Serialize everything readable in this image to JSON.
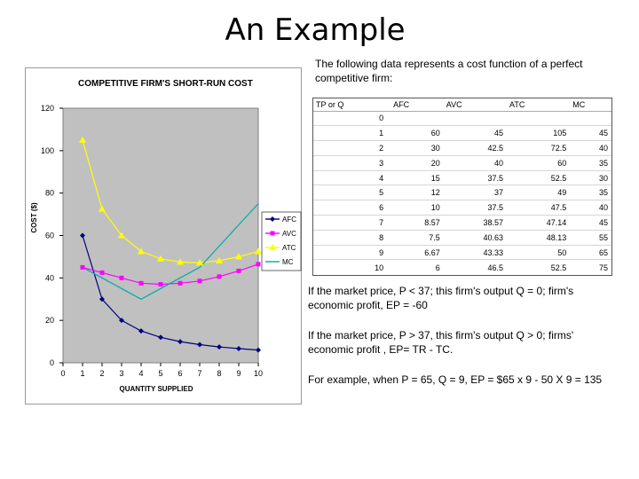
{
  "title": "An Example",
  "intro": "The following data represents a cost function of a perfect competitive firm:",
  "table": {
    "headers": [
      "TP or Q",
      "AFC",
      "AVC",
      "ATC",
      "MC"
    ],
    "rows": [
      [
        "0",
        "",
        "",
        "",
        ""
      ],
      [
        "1",
        "60",
        "45",
        "105",
        "45"
      ],
      [
        "2",
        "30",
        "42.5",
        "72.5",
        "40"
      ],
      [
        "3",
        "20",
        "40",
        "60",
        "35"
      ],
      [
        "4",
        "15",
        "37.5",
        "52.5",
        "30"
      ],
      [
        "5",
        "12",
        "37",
        "49",
        "35"
      ],
      [
        "6",
        "10",
        "37.5",
        "47.5",
        "40"
      ],
      [
        "7",
        "8.57",
        "38.57",
        "47.14",
        "45"
      ],
      [
        "8",
        "7.5",
        "40.63",
        "48.13",
        "55"
      ],
      [
        "9",
        "6.67",
        "43.33",
        "50",
        "65"
      ],
      [
        "10",
        "6",
        "46.5",
        "52.5",
        "75"
      ]
    ]
  },
  "paragraphs": [
    "If the market price, P < 37; this firm's output  Q = 0; firm's economic profit, EP = -60",
    "If the market price, P > 37, this firm's output  Q > 0; firms' economic profit , EP= TR - TC.",
    "For example, when P = 65, Q = 9, EP = $65 x 9 - 50 X 9 = 135"
  ],
  "chart_data": {
    "type": "line",
    "title": "COMPETITIVE FIRM'S SHORT-RUN COST",
    "xlabel": "QUANTITY SUPPLIED",
    "ylabel": "COST ($)",
    "xlim": [
      0,
      10
    ],
    "ylim": [
      0,
      120
    ],
    "xticks": [
      0,
      1,
      2,
      3,
      4,
      5,
      6,
      7,
      8,
      9,
      10
    ],
    "yticks": [
      0,
      20,
      40,
      60,
      80,
      100,
      120
    ],
    "plot_background": "#c0c0c0",
    "grid": false,
    "legend_position": "right",
    "x": [
      1,
      2,
      3,
      4,
      5,
      6,
      7,
      8,
      9,
      10
    ],
    "series": [
      {
        "name": "AFC",
        "color": "#000080",
        "marker": "diamond",
        "values": [
          60,
          30,
          20,
          15,
          12,
          10,
          8.57,
          7.5,
          6.67,
          6
        ]
      },
      {
        "name": "AVC",
        "color": "#ff00ff",
        "marker": "square",
        "values": [
          45,
          42.5,
          40,
          37.5,
          37,
          37.5,
          38.57,
          40.63,
          43.33,
          46.5
        ]
      },
      {
        "name": "ATC",
        "color": "#ffff00",
        "marker": "triangle",
        "values": [
          105,
          72.5,
          60,
          52.5,
          49,
          47.5,
          47.14,
          48.13,
          50,
          52.5
        ]
      },
      {
        "name": "MC",
        "color": "#00aaaa",
        "marker": "none",
        "values": [
          45,
          40,
          35,
          30,
          35,
          40,
          45,
          55,
          65,
          75
        ]
      }
    ]
  }
}
